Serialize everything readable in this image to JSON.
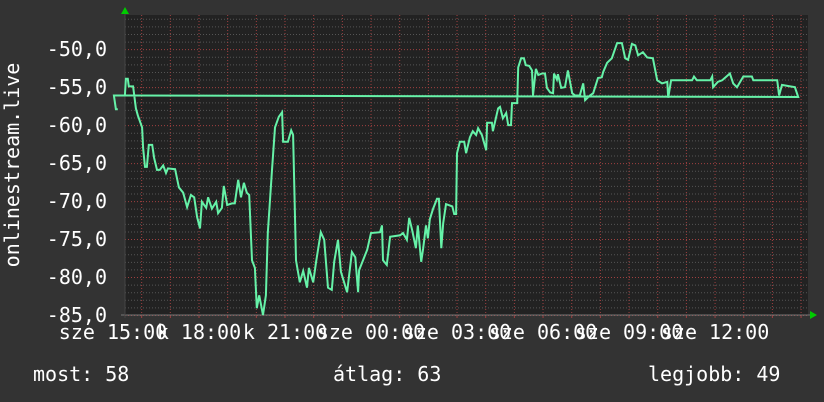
{
  "chart_data": {
    "type": "line",
    "title": "",
    "ylabel": "onlinestream.live",
    "xlabel": "",
    "ylim": [
      -85,
      -45.5
    ],
    "xlim": [
      "15:25",
      "15:17"
    ],
    "grid": true,
    "y_ticks": [
      "-50,0",
      "-55,0",
      "-60,0",
      "-65,0",
      "-70,0",
      "-75,0",
      "-80,0",
      "-85,0"
    ],
    "y_tick_values": [
      -50,
      -55,
      -60,
      -65,
      -70,
      -75,
      -80,
      -85
    ],
    "x_ticks": [
      {
        "time": "18:00",
        "label": "k 18:00"
      },
      {
        "time": "21:00",
        "label": "k 21:00"
      },
      {
        "time": "00:00",
        "label": "sze 00:00"
      },
      {
        "time": "03:00",
        "label": "sze 03:00"
      },
      {
        "time": "06:00",
        "label": "sze 06:00"
      },
      {
        "time": "09:00",
        "label": "sze 09:00"
      },
      {
        "time": "12:00",
        "label": "sze 12:00"
      },
      {
        "time": "15:00",
        "label": "sze 15:00"
      }
    ],
    "colors": {
      "line": "#66f2a8",
      "plot_bg": "#222222",
      "bg": "#333333",
      "major_grid": "#a04040",
      "minor_grid": "#555555",
      "arrow": "#00cc00"
    },
    "series": [
      {
        "points": [
          [
            "15:25",
            -56.1
          ],
          [
            "15:27",
            -53.9
          ],
          [
            "15:31",
            -53.9
          ],
          [
            "15:33",
            -54.9
          ],
          [
            "15:42",
            -54.9
          ],
          [
            "15:48",
            -57.8
          ],
          [
            "15:52",
            -58.7
          ],
          [
            "16:01",
            -60.3
          ],
          [
            "16:03",
            -63.0
          ],
          [
            "16:07",
            -65.5
          ],
          [
            "16:11",
            -65.5
          ],
          [
            "16:15",
            -62.6
          ],
          [
            "16:22",
            -62.6
          ],
          [
            "16:26",
            -64.3
          ],
          [
            "16:32",
            -65.9
          ],
          [
            "16:38",
            -65.9
          ],
          [
            "16:45",
            -65.3
          ],
          [
            "16:51",
            -66.3
          ],
          [
            "16:55",
            -65.7
          ],
          [
            "17:10",
            -65.8
          ],
          [
            "17:18",
            -68.2
          ],
          [
            "17:27",
            -68.9
          ],
          [
            "17:35",
            -70.8
          ],
          [
            "17:43",
            -69.2
          ],
          [
            "17:50",
            -69.5
          ],
          [
            "17:56",
            -72.1
          ],
          [
            "18:02",
            -73.6
          ],
          [
            "18:06",
            -70.1
          ],
          [
            "18:15",
            -70.9
          ],
          [
            "18:19",
            -69.5
          ],
          [
            "18:27",
            -71.0
          ],
          [
            "18:36",
            -70.1
          ],
          [
            "18:40",
            -71.6
          ],
          [
            "18:48",
            -70.9
          ],
          [
            "18:52",
            -68.0
          ],
          [
            "18:59",
            -70.5
          ],
          [
            "19:09",
            -70.3
          ],
          [
            "19:15",
            -70.3
          ],
          [
            "19:22",
            -67.2
          ],
          [
            "19:28",
            -69.5
          ],
          [
            "19:34",
            -67.6
          ],
          [
            "19:40",
            -68.9
          ],
          [
            "19:45",
            -69.2
          ],
          [
            "19:51",
            -77.8
          ],
          [
            "19:57",
            -78.8
          ],
          [
            "20:01",
            -84.1
          ],
          [
            "20:06",
            -82.4
          ],
          [
            "20:14",
            -85.0
          ],
          [
            "20:20",
            -82.4
          ],
          [
            "20:24",
            -74.2
          ],
          [
            "20:33",
            -65.7
          ],
          [
            "20:39",
            -60.3
          ],
          [
            "20:47",
            -58.9
          ],
          [
            "20:54",
            -58.3
          ],
          [
            "20:56",
            -62.2
          ],
          [
            "21:06",
            -62.2
          ],
          [
            "21:13",
            -60.7
          ],
          [
            "21:17",
            -61.3
          ],
          [
            "21:23",
            -77.8
          ],
          [
            "21:31",
            -80.7
          ],
          [
            "21:38",
            -79.2
          ],
          [
            "21:46",
            -81.4
          ],
          [
            "21:50",
            -78.8
          ],
          [
            "21:59",
            -80.7
          ],
          [
            "22:05",
            -78.0
          ],
          [
            "22:15",
            -74.1
          ],
          [
            "22:22",
            -75.1
          ],
          [
            "22:30",
            -81.4
          ],
          [
            "22:38",
            -81.7
          ],
          [
            "22:43",
            -78.0
          ],
          [
            "22:51",
            -75.1
          ],
          [
            "22:57",
            -79.3
          ],
          [
            "23:10",
            -82.0
          ],
          [
            "23:20",
            -76.7
          ],
          [
            "23:27",
            -77.4
          ],
          [
            "23:33",
            -82.0
          ],
          [
            "23:35",
            -79.1
          ],
          [
            "23:52",
            -76.4
          ],
          [
            "00:00",
            -74.2
          ],
          [
            "00:19",
            -74.1
          ],
          [
            "00:23",
            -73.2
          ],
          [
            "00:25",
            -77.8
          ],
          [
            "00:33",
            -78.4
          ],
          [
            "00:40",
            -74.7
          ],
          [
            "01:01",
            -74.5
          ],
          [
            "01:07",
            -74.2
          ],
          [
            "01:15",
            -75.1
          ],
          [
            "01:20",
            -72.2
          ],
          [
            "01:26",
            -73.8
          ],
          [
            "01:34",
            -76.2
          ],
          [
            "01:38",
            -73.2
          ],
          [
            "01:45",
            -78.0
          ],
          [
            "01:49",
            -76.3
          ],
          [
            "01:55",
            -73.2
          ],
          [
            "01:59",
            -74.9
          ],
          [
            "02:03",
            -72.4
          ],
          [
            "02:10",
            -71.0
          ],
          [
            "02:18",
            -69.7
          ],
          [
            "02:22",
            -69.7
          ],
          [
            "02:27",
            -76.2
          ],
          [
            "02:31",
            -72.9
          ],
          [
            "02:37",
            -70.4
          ],
          [
            "02:50",
            -70.7
          ],
          [
            "02:54",
            -71.7
          ],
          [
            "02:58",
            -71.7
          ],
          [
            "03:00",
            -63.7
          ],
          [
            "03:06",
            -62.2
          ],
          [
            "03:15",
            -62.2
          ],
          [
            "03:19",
            -63.7
          ],
          [
            "03:27",
            -61.6
          ],
          [
            "03:33",
            -60.8
          ],
          [
            "03:40",
            -61.3
          ],
          [
            "03:44",
            -60.4
          ],
          [
            "03:52",
            -61.3
          ],
          [
            "04:01",
            -63.3
          ],
          [
            "04:03",
            -59.7
          ],
          [
            "04:13",
            -59.7
          ],
          [
            "04:15",
            -60.8
          ],
          [
            "04:26",
            -57.8
          ],
          [
            "04:30",
            -57.6
          ],
          [
            "04:36",
            -59.1
          ],
          [
            "04:43",
            -58.4
          ],
          [
            "04:47",
            -60.0
          ],
          [
            "04:53",
            -60.0
          ],
          [
            "04:55",
            -57.1
          ],
          [
            "05:06",
            -57.1
          ],
          [
            "05:08",
            -52.4
          ],
          [
            "05:14",
            -51.2
          ],
          [
            "05:20",
            -51.2
          ],
          [
            "05:24",
            -52.1
          ],
          [
            "05:31",
            -52.2
          ],
          [
            "05:37",
            -52.8
          ],
          [
            "05:39",
            -56.1
          ],
          [
            "05:45",
            -52.6
          ],
          [
            "05:50",
            -53.4
          ],
          [
            "05:58",
            -53.2
          ],
          [
            "06:04",
            -53.2
          ],
          [
            "06:08",
            -55.1
          ],
          [
            "06:15",
            -55.7
          ],
          [
            "06:21",
            -55.8
          ],
          [
            "06:23",
            -53.2
          ],
          [
            "06:29",
            -54.0
          ],
          [
            "06:31",
            -53.3
          ],
          [
            "06:38",
            -55.1
          ],
          [
            "06:46",
            -55.0
          ],
          [
            "06:52",
            -52.8
          ],
          [
            "07:01",
            -55.8
          ],
          [
            "07:07",
            -56.1
          ],
          [
            "07:17",
            -56.1
          ],
          [
            "07:24",
            -54.5
          ],
          [
            "07:28",
            -56.7
          ],
          [
            "07:38",
            -56.1
          ],
          [
            "07:45",
            -55.8
          ],
          [
            "07:55",
            -53.8
          ],
          [
            "08:03",
            -53.7
          ],
          [
            "08:06",
            -53.0
          ],
          [
            "08:14",
            -51.8
          ],
          [
            "08:24",
            -51.2
          ],
          [
            "08:35",
            -49.2
          ],
          [
            "08:45",
            -49.2
          ],
          [
            "08:52",
            -51.2
          ],
          [
            "08:58",
            -51.4
          ],
          [
            "09:06",
            -49.3
          ],
          [
            "09:13",
            -49.5
          ],
          [
            "09:19",
            -50.8
          ],
          [
            "09:29",
            -50.4
          ],
          [
            "09:38",
            -51.1
          ],
          [
            "09:50",
            -51.2
          ],
          [
            "09:59",
            -54.1
          ],
          [
            "10:09",
            -54.5
          ],
          [
            "10:20",
            -54.3
          ],
          [
            "10:22",
            -56.4
          ],
          [
            "10:28",
            -54.1
          ],
          [
            "11:12",
            -54.1
          ],
          [
            "11:16",
            -53.6
          ],
          [
            "11:22",
            -54.1
          ],
          [
            "11:50",
            -54.1
          ],
          [
            "11:54",
            -53.6
          ],
          [
            "11:56",
            -55.0
          ],
          [
            "12:06",
            -54.3
          ],
          [
            "12:15",
            -54.1
          ],
          [
            "12:31",
            -53.2
          ],
          [
            "12:38",
            -54.5
          ],
          [
            "12:46",
            -55.0
          ],
          [
            "12:59",
            -53.6
          ],
          [
            "13:17",
            -53.6
          ],
          [
            "13:20",
            -54.1
          ],
          [
            "14:10",
            -54.1
          ],
          [
            "14:14",
            -56.1
          ],
          [
            "14:20",
            -54.7
          ],
          [
            "14:37",
            -54.9
          ],
          [
            "14:47",
            -55.0
          ],
          [
            "14:54",
            -56.3
          ],
          [
            "15:02",
            -56.1
          ],
          [
            "15:06",
            -57.9
          ],
          [
            "15:10",
            -57.9
          ]
        ]
      }
    ]
  },
  "legend": {
    "current": "most: 58",
    "average": "átlag: 63",
    "best": "legjobb: 49"
  }
}
